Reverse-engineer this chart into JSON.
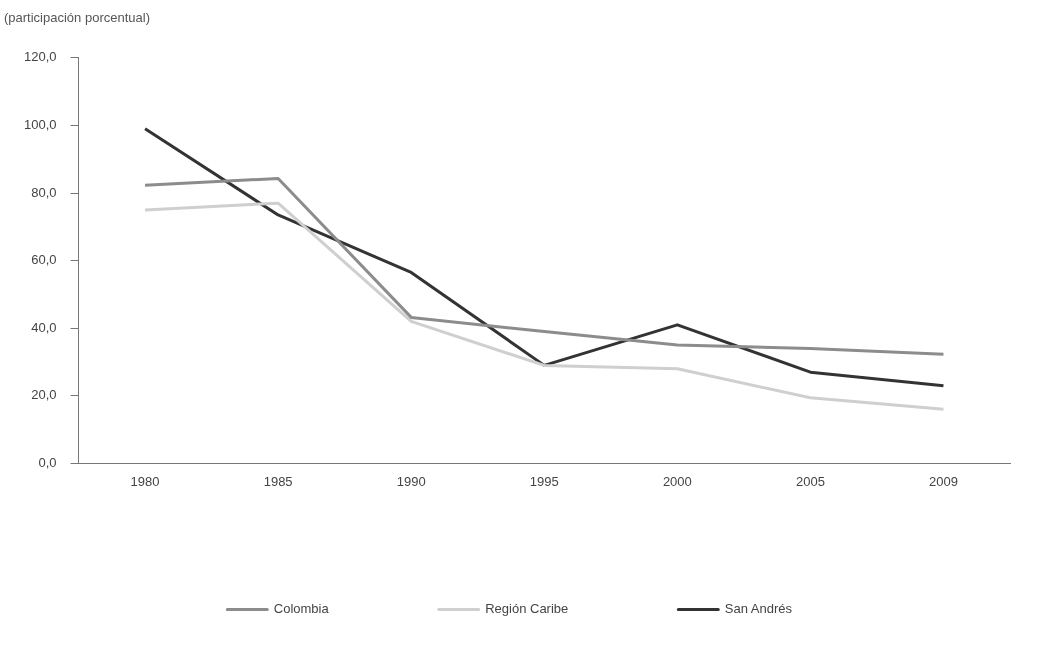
{
  "chart_data": {
    "type": "line",
    "ylabel": "(participación porcentual)",
    "categories": [
      "1980",
      "1985",
      "1990",
      "1995",
      "2000",
      "2005",
      "2009"
    ],
    "series": [
      {
        "name": "Colombia",
        "color": "#8c8c8c",
        "values": [
          82.3,
          84.3,
          43.2,
          39,
          35,
          34,
          32.3
        ]
      },
      {
        "name": "Región Caribe",
        "color": "#cfcfcf",
        "values": [
          75,
          77,
          42,
          29,
          28,
          19.4,
          16
        ]
      },
      {
        "name": "San Andrés",
        "color": "#333333",
        "values": [
          99,
          73.5,
          56.5,
          29,
          41,
          27,
          23
        ]
      }
    ],
    "ylim": [
      0,
      120
    ],
    "yticks": [
      {
        "value": 0,
        "label": "0,0"
      },
      {
        "value": 20,
        "label": "20,0"
      },
      {
        "value": 40,
        "label": "40,0"
      },
      {
        "value": 60,
        "label": "60,0"
      },
      {
        "value": 80,
        "label": "80,0"
      },
      {
        "value": 100,
        "label": "100,0"
      },
      {
        "value": 120,
        "label": "120,0"
      }
    ],
    "grid": false,
    "legend": "bottom",
    "marker": "none",
    "line_style": "solid"
  }
}
